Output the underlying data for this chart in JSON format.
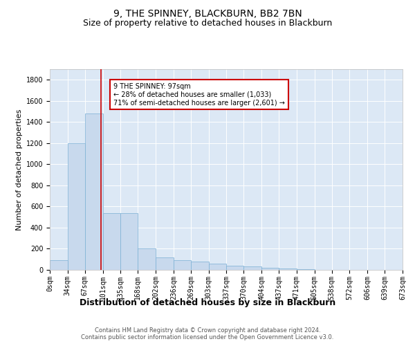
{
  "title": "9, THE SPINNEY, BLACKBURN, BB2 7BN",
  "subtitle": "Size of property relative to detached houses in Blackburn",
  "xlabel": "Distribution of detached houses by size in Blackburn",
  "ylabel": "Number of detached properties",
  "bin_edges": [
    0,
    34,
    67,
    101,
    135,
    168,
    202,
    236,
    269,
    303,
    337,
    370,
    404,
    437,
    471,
    505,
    538,
    572,
    606,
    639,
    673
  ],
  "bar_heights": [
    90,
    1200,
    1480,
    540,
    540,
    200,
    120,
    90,
    80,
    60,
    40,
    30,
    20,
    10,
    5,
    3,
    2,
    1,
    1,
    1
  ],
  "bar_color": "#c8d9ed",
  "bar_edge_color": "#7aafd4",
  "property_line_x": 97,
  "property_line_color": "#cc0000",
  "ylim": [
    0,
    1900
  ],
  "yticks": [
    0,
    200,
    400,
    600,
    800,
    1000,
    1200,
    1400,
    1600,
    1800
  ],
  "annotation_text": "9 THE SPINNEY: 97sqm\n← 28% of detached houses are smaller (1,033)\n71% of semi-detached houses are larger (2,601) →",
  "annotation_box_color": "#ffffff",
  "annotation_box_edgecolor": "#cc0000",
  "footer_text": "Contains HM Land Registry data © Crown copyright and database right 2024.\nContains public sector information licensed under the Open Government Licence v3.0.",
  "background_color": "#dce8f5",
  "title_fontsize": 10,
  "subtitle_fontsize": 9,
  "xlabel_fontsize": 9,
  "ylabel_fontsize": 8,
  "tick_fontsize": 7,
  "annotation_fontsize": 7,
  "footer_fontsize": 6
}
